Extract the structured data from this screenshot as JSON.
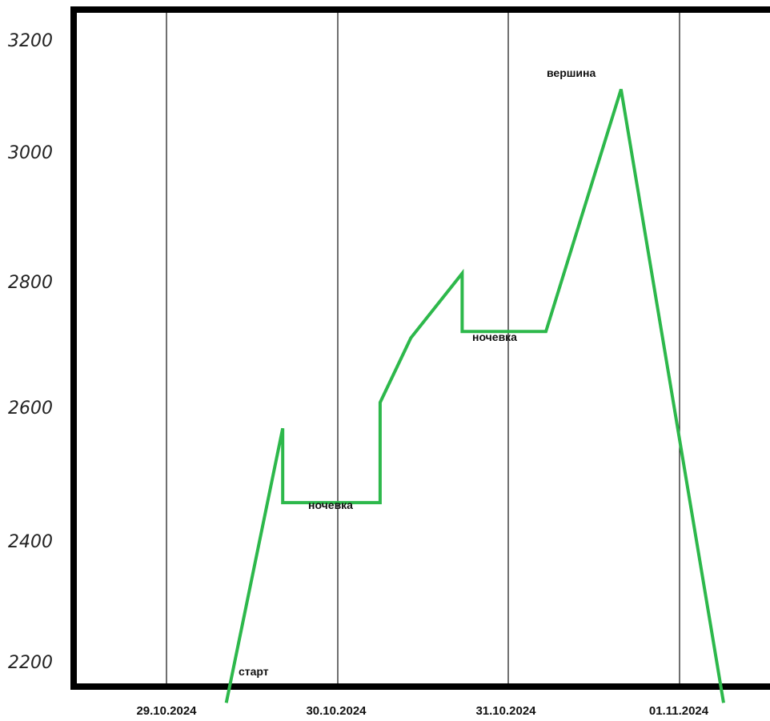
{
  "chart_data": {
    "type": "line",
    "title": "",
    "xlabel": "",
    "ylabel": "",
    "ylim": [
      2160,
      3250
    ],
    "yticks": [
      "2200",
      "2400",
      "2600",
      "2800",
      "3000",
      "3200"
    ],
    "xticks": [
      "29.10.2024",
      "30.10.2024",
      "31.10.2024",
      "01.11.2024"
    ],
    "grid_x": true,
    "line_color": "#2db84b",
    "series": [
      {
        "points": [
          {
            "t": 0.35,
            "y": 2160
          },
          {
            "t": 0.68,
            "y": 2585
          },
          {
            "t": 0.68,
            "y": 2470
          },
          {
            "t": 1.25,
            "y": 2470
          },
          {
            "t": 1.25,
            "y": 2625
          },
          {
            "t": 1.43,
            "y": 2725
          },
          {
            "t": 1.73,
            "y": 2825
          },
          {
            "t": 1.73,
            "y": 2735
          },
          {
            "t": 2.22,
            "y": 2735
          },
          {
            "t": 2.66,
            "y": 3110
          },
          {
            "t": 3.26,
            "y": 2160
          }
        ]
      }
    ],
    "annotations": [
      {
        "text": "старт"
      },
      {
        "text": "ночевка"
      },
      {
        "text": "ночевка"
      },
      {
        "text": "вершина"
      }
    ]
  }
}
